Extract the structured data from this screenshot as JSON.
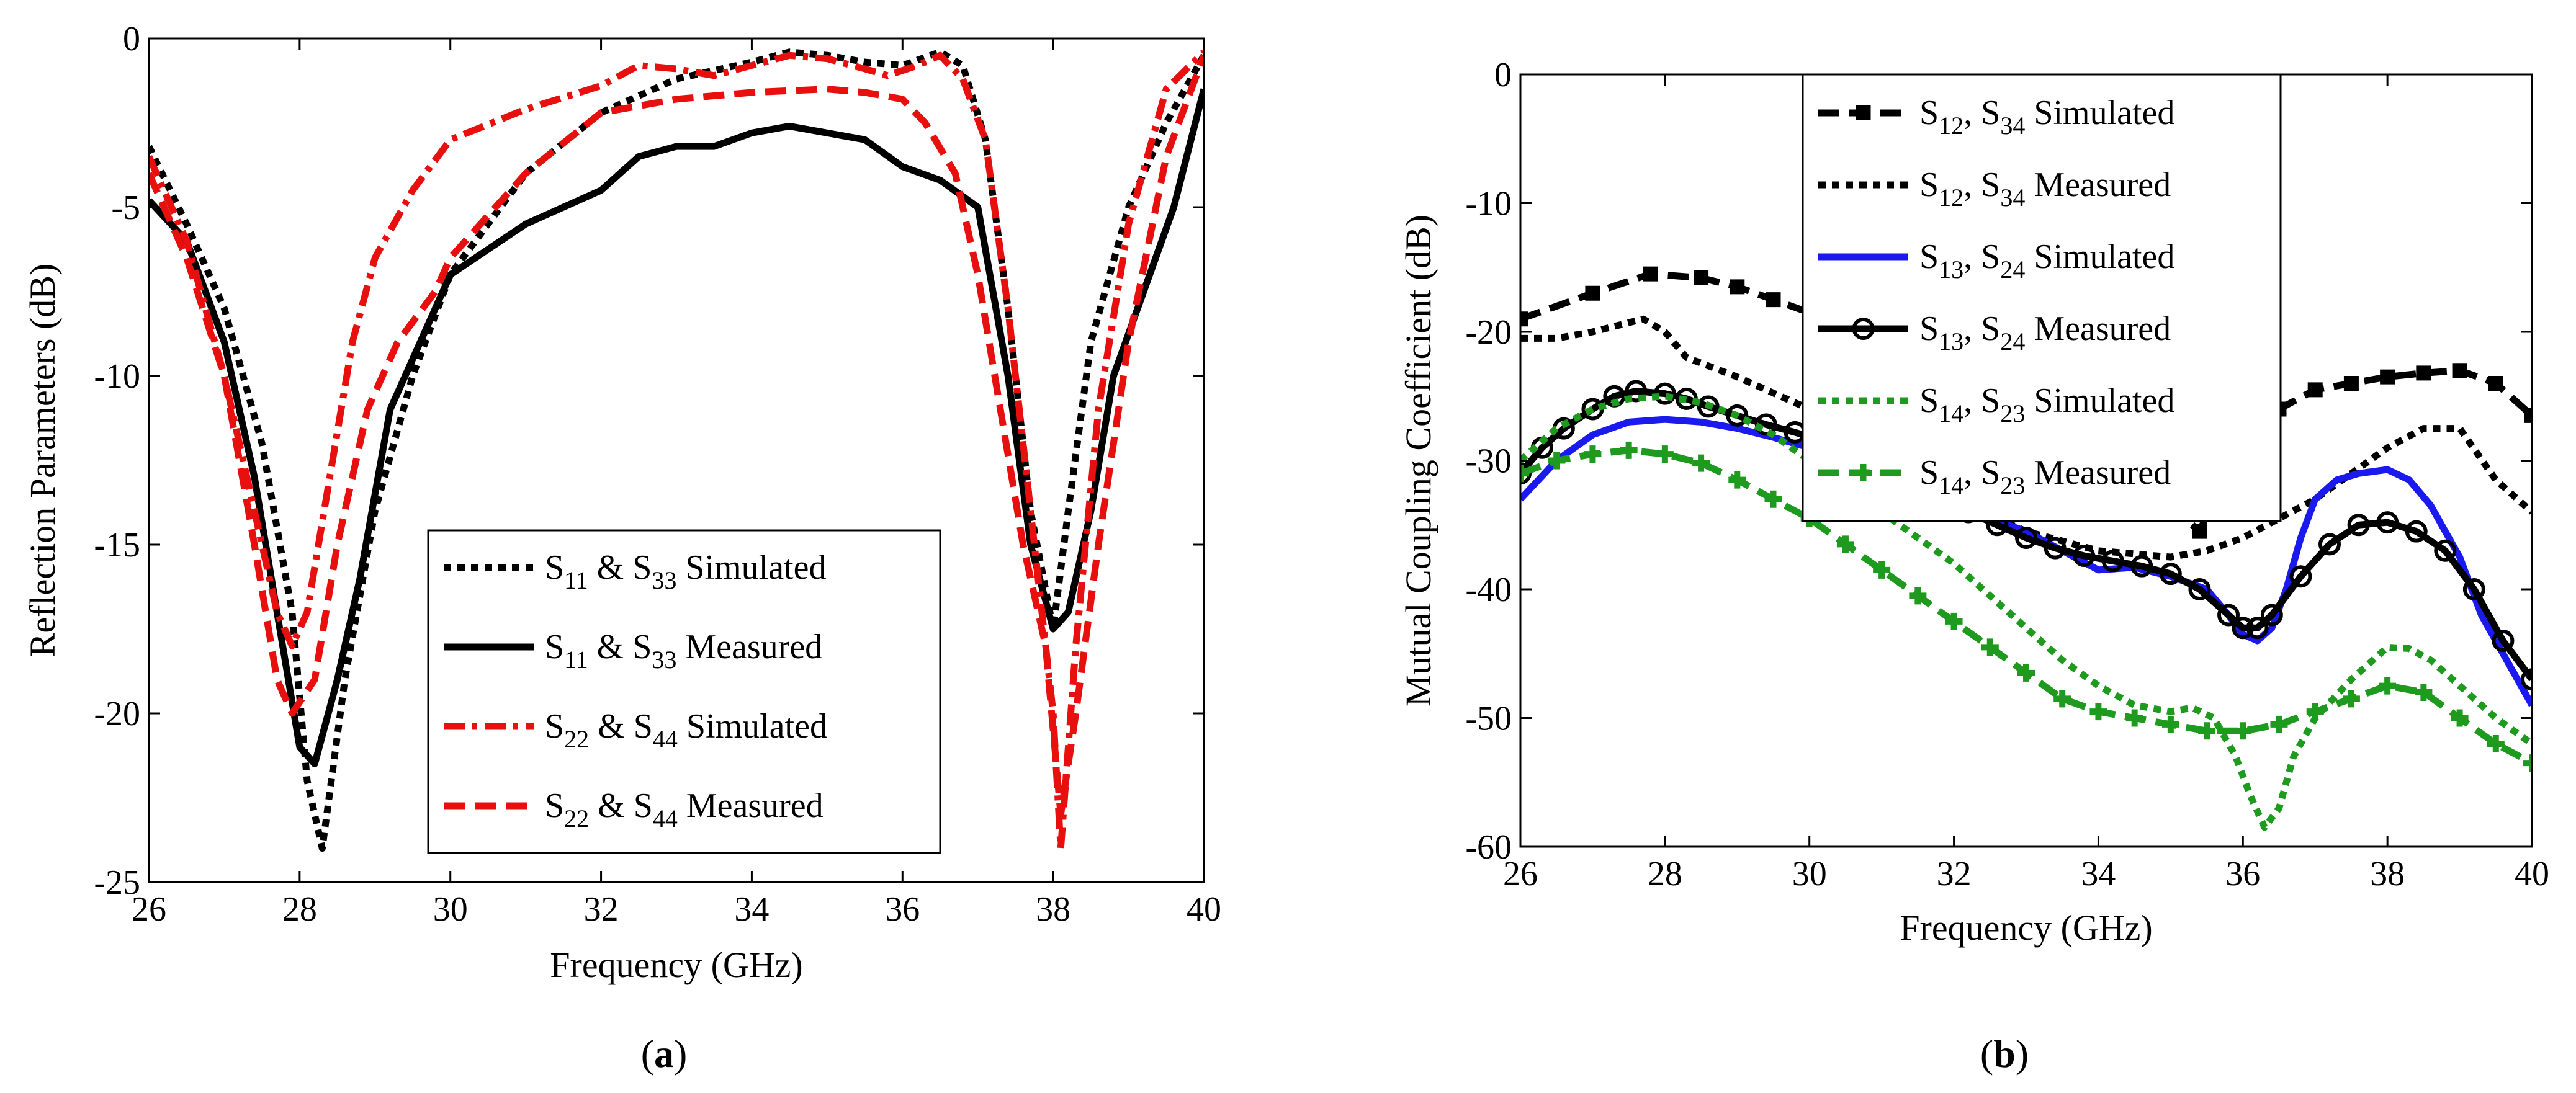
{
  "chart_data": [
    {
      "id": "a",
      "type": "line",
      "caption": {
        "open": "(",
        "letter": "a",
        "close": ")"
      },
      "xlabel": "Frequency (GHz)",
      "ylabel": "Reflection Parameters (dB)",
      "xlim": [
        26,
        40
      ],
      "ylim": [
        -25,
        0
      ],
      "xticks": [
        "26",
        "28",
        "30",
        "32",
        "34",
        "36",
        "38",
        "40"
      ],
      "yticks": [
        "-25",
        "-20",
        "-15",
        "-10",
        "-5",
        "0"
      ],
      "legend": {
        "position": "lower-right"
      },
      "series": [
        {
          "name": "S11 & S33 Simulated",
          "label": {
            "s1": "S",
            "sub1": "11",
            "mid": " & S",
            "sub2": "33",
            "tail": " Simulated"
          },
          "color": "#000000",
          "dash": "dotted",
          "marker": "none",
          "x": [
            26,
            26.5,
            27,
            27.5,
            27.9,
            28.1,
            28.3,
            28.6,
            29,
            29.5,
            30,
            31,
            32,
            33,
            34,
            34.5,
            35,
            35.5,
            36,
            36.5,
            36.8,
            37.1,
            37.4,
            37.7,
            38,
            38.2,
            38.5,
            39,
            39.5,
            40
          ],
          "y": [
            -3.2,
            -5.5,
            -8,
            -12,
            -17,
            -22,
            -24,
            -19,
            -14,
            -10,
            -7,
            -4,
            -2.2,
            -1.2,
            -0.7,
            -0.4,
            -0.5,
            -0.7,
            -0.8,
            -0.4,
            -0.8,
            -3,
            -8,
            -14,
            -17.5,
            -14,
            -9,
            -5,
            -2.5,
            -0.5
          ]
        },
        {
          "name": "S11 & S33 Measured",
          "label": {
            "s1": "S",
            "sub1": "11",
            "mid": " & S",
            "sub2": "33",
            "tail": " Measured"
          },
          "color": "#000000",
          "dash": "solid",
          "marker": "none",
          "x": [
            26,
            26.5,
            27,
            27.4,
            27.7,
            28,
            28.2,
            28.5,
            28.8,
            29.2,
            29.7,
            30,
            31,
            32,
            32.5,
            33,
            33.5,
            34,
            34.5,
            35,
            35.5,
            36,
            36.5,
            37,
            37.4,
            37.7,
            38,
            38.2,
            38.5,
            38.8,
            39.2,
            39.6,
            40
          ],
          "y": [
            -4.8,
            -6,
            -9,
            -13,
            -17,
            -21,
            -21.5,
            -19,
            -16,
            -11,
            -8.5,
            -7,
            -5.5,
            -4.5,
            -3.5,
            -3.2,
            -3.2,
            -2.8,
            -2.6,
            -2.8,
            -3,
            -3.8,
            -4.2,
            -5,
            -10,
            -15,
            -17.5,
            -17,
            -14,
            -10,
            -7.5,
            -5,
            -1.5
          ]
        },
        {
          "name": "S22 & S44 Simulated",
          "label": {
            "s1": "S",
            "sub1": "22",
            "mid": " & S",
            "sub2": "44",
            "tail": " Simulated"
          },
          "color": "#e8100e",
          "dash": "dashdot",
          "marker": "none",
          "x": [
            26,
            26.5,
            27,
            27.4,
            27.7,
            27.9,
            28.1,
            28.4,
            28.7,
            29,
            29.5,
            30,
            31,
            32,
            32.5,
            33,
            33.5,
            34,
            34.5,
            35,
            35.5,
            35.8,
            36.2,
            36.5,
            36.8,
            37.1,
            37.4,
            37.7,
            38,
            38.1,
            38.3,
            38.6,
            39,
            39.5,
            40
          ],
          "y": [
            -3.5,
            -6,
            -10,
            -14,
            -17,
            -18,
            -17,
            -13,
            -9,
            -6.5,
            -4.5,
            -3,
            -2.1,
            -1.4,
            -0.8,
            -0.9,
            -1.1,
            -0.8,
            -0.5,
            -0.6,
            -0.9,
            -1.1,
            -0.8,
            -0.5,
            -1.2,
            -3,
            -8,
            -14,
            -20,
            -24,
            -18,
            -11,
            -5.5,
            -1.5,
            -0.4
          ]
        },
        {
          "name": "S22 & S44 Measured",
          "label": {
            "s1": "S",
            "sub1": "22",
            "mid": " & S",
            "sub2": "44",
            "tail": " Measured"
          },
          "color": "#e8100e",
          "dash": "dashed",
          "marker": "none",
          "x": [
            26,
            26.5,
            27,
            27.4,
            27.7,
            27.9,
            28.2,
            28.5,
            28.9,
            29.3,
            29.8,
            30,
            31,
            32,
            33,
            34,
            35,
            35.5,
            36,
            36.3,
            36.7,
            37,
            37.3,
            37.6,
            37.9,
            38.1,
            38.3,
            38.6,
            39,
            39.5,
            40
          ],
          "y": [
            -4,
            -6.5,
            -10,
            -15,
            -19,
            -20,
            -19,
            -15,
            -11,
            -9,
            -7.5,
            -6.5,
            -4,
            -2.2,
            -1.8,
            -1.6,
            -1.5,
            -1.6,
            -1.8,
            -2.5,
            -4,
            -7,
            -11,
            -15,
            -18,
            -23,
            -20,
            -15,
            -9,
            -3.5,
            -0.5
          ]
        }
      ]
    },
    {
      "id": "b",
      "type": "line",
      "caption": {
        "open": "(",
        "letter": "b",
        "close": ")"
      },
      "xlabel": "Frequency (GHz)",
      "ylabel": "Mutual Coupling Coefficient (dB)",
      "xlim": [
        26,
        40
      ],
      "ylim": [
        -60,
        0
      ],
      "xticks": [
        "26",
        "28",
        "30",
        "32",
        "34",
        "36",
        "38",
        "40"
      ],
      "yticks": [
        "-60",
        "-50",
        "-40",
        "-30",
        "-20",
        "-10",
        "0"
      ],
      "legend": {
        "position": "top-center"
      },
      "series": [
        {
          "name": "S12, S34 Simulated",
          "label": {
            "s1": "S",
            "sub1": "12",
            "mid": ", S",
            "sub2": "34",
            "tail": " Simulated"
          },
          "color": "#000000",
          "dash": "dashed",
          "marker": "square",
          "x": [
            26,
            27,
            27.8,
            28.5,
            29,
            29.5,
            30,
            30.5,
            31,
            31.5,
            32,
            32.5,
            33,
            33.5,
            34,
            34.5,
            35,
            35.4,
            35.6,
            35.8,
            36,
            36.3,
            36.5,
            37,
            37.5,
            38,
            38.5,
            39,
            39.5,
            40
          ],
          "y": [
            -19,
            -17,
            -15.5,
            -15.8,
            -16.5,
            -17.5,
            -18.5,
            -20,
            -21.5,
            -23,
            -24.5,
            -25.5,
            -26,
            -27.5,
            -30,
            -31.5,
            -33.5,
            -35.5,
            -33,
            -31,
            -29,
            -27.5,
            -26,
            -24.5,
            -24,
            -23.5,
            -23.2,
            -23,
            -24,
            -26.5
          ]
        },
        {
          "name": "S12, S34 Measured",
          "label": {
            "s1": "S",
            "sub1": "12",
            "mid": ", S",
            "sub2": "34",
            "tail": " Measured"
          },
          "color": "#000000",
          "dash": "dotted",
          "marker": "none",
          "x": [
            26,
            26.5,
            27,
            27.7,
            28,
            28.3,
            29,
            30,
            31,
            32,
            33,
            34,
            35,
            35.5,
            36,
            36.5,
            37,
            37.5,
            38,
            38.5,
            39,
            39.5,
            40
          ],
          "y": [
            -20.5,
            -20.5,
            -20,
            -19,
            -20,
            -22,
            -23.5,
            -26,
            -29,
            -33,
            -35.5,
            -37,
            -37.5,
            -37,
            -36,
            -34.5,
            -33,
            -31,
            -29,
            -27.5,
            -27.5,
            -31.5,
            -34
          ]
        },
        {
          "name": "S13, S24 Simulated",
          "label": {
            "s1": "S",
            "sub1": "13",
            "mid": ", S",
            "sub2": "24",
            "tail": " Simulated"
          },
          "color": "#1a1aee",
          "dash": "solid",
          "marker": "none",
          "x": [
            26,
            26.5,
            27,
            27.5,
            28,
            28.5,
            29,
            29.5,
            30,
            31,
            32,
            33,
            33.5,
            34,
            34.5,
            35,
            35.5,
            35.8,
            36,
            36.2,
            36.4,
            36.6,
            36.8,
            37,
            37.3,
            37.6,
            38,
            38.3,
            38.6,
            39,
            39.3,
            39.6,
            40
          ],
          "y": [
            -33,
            -30,
            -28,
            -27,
            -26.8,
            -27,
            -27.5,
            -28.2,
            -29,
            -31,
            -33.5,
            -35.5,
            -37,
            -38.5,
            -38.3,
            -39,
            -40,
            -42,
            -43.5,
            -44,
            -43,
            -40,
            -36,
            -33,
            -31.5,
            -31,
            -30.7,
            -31.5,
            -33.5,
            -37.5,
            -42,
            -45,
            -49
          ]
        },
        {
          "name": "S13, S24 Measured",
          "label": {
            "s1": "S",
            "sub1": "13",
            "mid": ", S",
            "sub2": "24",
            "tail": " Measured"
          },
          "color": "#000000",
          "dash": "solid",
          "marker": "circle",
          "x": [
            26,
            26.3,
            26.6,
            27,
            27.3,
            27.6,
            28,
            28.3,
            28.6,
            29,
            29.4,
            29.8,
            30.2,
            30.6,
            31,
            31.4,
            31.8,
            32.2,
            32.6,
            33,
            33.4,
            33.8,
            34.2,
            34.6,
            35,
            35.4,
            35.8,
            36,
            36.2,
            36.4,
            36.8,
            37.2,
            37.6,
            38,
            38.4,
            38.8,
            39.2,
            39.6,
            40
          ],
          "y": [
            -31,
            -29,
            -27.5,
            -26,
            -25,
            -24.6,
            -24.8,
            -25.2,
            -25.8,
            -26.5,
            -27.2,
            -27.8,
            -28.5,
            -29.5,
            -30.5,
            -32,
            -33,
            -34,
            -35,
            -36,
            -36.8,
            -37.4,
            -37.8,
            -38.2,
            -38.8,
            -40,
            -42,
            -43,
            -43,
            -42,
            -39,
            -36.5,
            -35,
            -34.8,
            -35.5,
            -37,
            -40,
            -44,
            -47
          ]
        },
        {
          "name": "S14, S23 Simulated",
          "label": {
            "s1": "S",
            "sub1": "14",
            "mid": ", S",
            "sub2": "23",
            "tail": " Simulated"
          },
          "color": "#1e9a1e",
          "dash": "dotted",
          "marker": "none",
          "x": [
            26,
            26.5,
            27,
            27.5,
            28,
            28.5,
            29,
            29.5,
            30,
            30.5,
            31,
            31.5,
            32,
            32.5,
            33,
            33.5,
            34,
            34.5,
            35,
            35.3,
            35.6,
            35.9,
            36.1,
            36.3,
            36.5,
            36.7,
            37,
            37.5,
            38,
            38.3,
            38.6,
            39,
            39.5,
            40
          ],
          "y": [
            -30,
            -27.5,
            -26,
            -25.2,
            -25,
            -25.5,
            -26.5,
            -28,
            -30,
            -32,
            -34,
            -36,
            -38,
            -40.5,
            -43,
            -45.5,
            -47.5,
            -49,
            -49.5,
            -49.2,
            -50,
            -53,
            -56,
            -58.5,
            -57,
            -53,
            -50,
            -47,
            -44.5,
            -44.6,
            -45.5,
            -47.5,
            -50,
            -52
          ]
        },
        {
          "name": "S14, S23 Measured",
          "label": {
            "s1": "S",
            "sub1": "14",
            "mid": ", S",
            "sub2": "23",
            "tail": " Measured"
          },
          "color": "#1e9a1e",
          "dash": "dashed",
          "marker": "plus",
          "x": [
            26,
            26.5,
            27,
            27.5,
            28,
            28.5,
            29,
            29.5,
            30,
            30.5,
            31,
            31.5,
            32,
            32.5,
            33,
            33.5,
            34,
            34.5,
            35,
            35.5,
            36,
            36.5,
            37,
            37.5,
            38,
            38.5,
            39,
            39.5,
            40
          ],
          "y": [
            -31,
            -30,
            -29.5,
            -29.2,
            -29.5,
            -30.2,
            -31.5,
            -33,
            -34.5,
            -36.5,
            -38.5,
            -40.5,
            -42.5,
            -44.5,
            -46.5,
            -48.5,
            -49.5,
            -50,
            -50.5,
            -51,
            -51,
            -50.5,
            -49.5,
            -48.5,
            -47.5,
            -48,
            -50,
            -52,
            -53.5
          ]
        }
      ]
    }
  ]
}
